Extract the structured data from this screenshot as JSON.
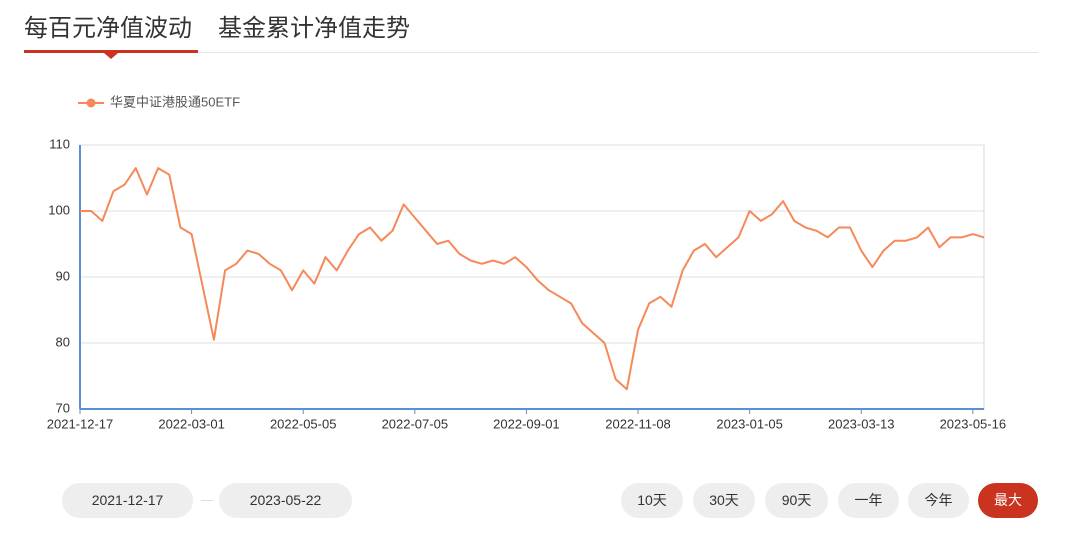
{
  "tabs": [
    "每百元净值波动",
    "基金累计净值走势"
  ],
  "date_range": {
    "start": "2021-12-17",
    "end": "2023-05-22"
  },
  "range_buttons": [
    "10天",
    "30天",
    "90天",
    "一年",
    "今年",
    "最大"
  ],
  "chart_data": {
    "type": "line",
    "categories": [
      "2021-12-17",
      null,
      null,
      null,
      null,
      null,
      null,
      null,
      null,
      null,
      "2022-03-01",
      null,
      null,
      null,
      null,
      null,
      null,
      null,
      null,
      null,
      "2022-05-05",
      null,
      null,
      null,
      null,
      null,
      null,
      null,
      null,
      null,
      "2022-07-05",
      null,
      null,
      null,
      null,
      null,
      null,
      null,
      null,
      null,
      "2022-09-01",
      null,
      null,
      null,
      null,
      null,
      null,
      null,
      null,
      null,
      "2022-11-08",
      null,
      null,
      null,
      null,
      null,
      null,
      null,
      null,
      null,
      "2023-01-05",
      null,
      null,
      null,
      null,
      null,
      null,
      null,
      null,
      null,
      "2023-03-13",
      null,
      null,
      null,
      null,
      null,
      null,
      null,
      null,
      null,
      "2023-05-16",
      null
    ],
    "series": [
      {
        "name": "华夏中证港股通50ETF",
        "color": "#f5895a",
        "values": [
          100,
          100,
          98.5,
          103,
          104,
          106.5,
          102.5,
          106.5,
          105.5,
          97.5,
          96.5,
          88.5,
          80.5,
          91,
          92,
          94,
          93.5,
          92,
          91,
          88,
          91,
          89,
          93,
          91,
          94,
          96.5,
          97.5,
          95.5,
          97,
          101,
          99,
          97,
          95,
          95.5,
          93.5,
          92.5,
          92,
          92.5,
          92,
          93,
          91.5,
          89.5,
          88,
          87,
          86,
          83,
          81.5,
          80,
          74.5,
          73,
          82,
          86,
          87,
          85.5,
          91,
          94,
          95,
          93,
          94.5,
          96,
          100,
          98.5,
          99.5,
          101.5,
          98.5,
          97.5,
          97,
          96,
          97.5,
          97.5,
          94,
          91.5,
          94,
          95.5,
          95.5,
          96,
          97.5,
          94.5,
          96,
          96,
          96.5,
          96
        ]
      }
    ],
    "ylim": [
      70,
      110
    ],
    "yticks": [
      70,
      80,
      90,
      100,
      110
    ],
    "grid": true
  }
}
